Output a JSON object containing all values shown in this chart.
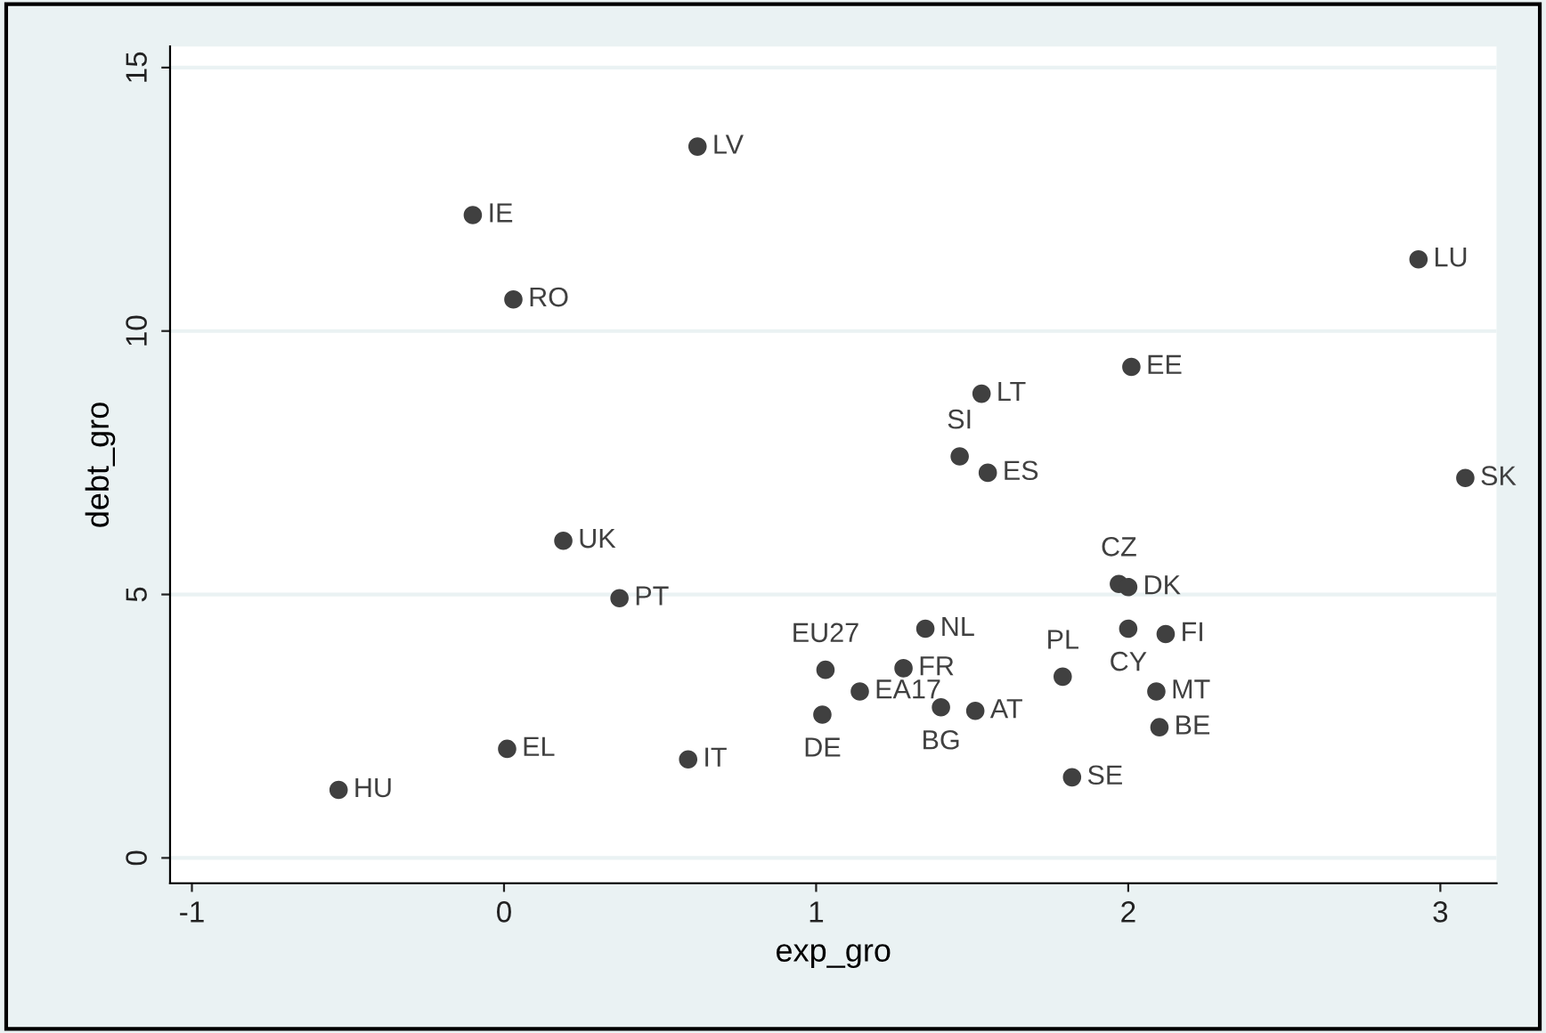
{
  "chart_data": {
    "type": "scatter",
    "xlabel": "exp_gro",
    "ylabel": "debt_gro",
    "x": [
      0.62,
      -0.1,
      0.03,
      2.93,
      1.53,
      2.01,
      1.46,
      1.55,
      3.08,
      0.19,
      0.37,
      1.97,
      2.0,
      1.35,
      2.0,
      2.12,
      1.03,
      1.28,
      1.14,
      1.02,
      1.4,
      1.51,
      1.79,
      2.09,
      2.1,
      1.82,
      0.59,
      0.01,
      -0.53
    ],
    "series": [
      {
        "color": "#404040",
        "values": [
          13.5,
          12.2,
          10.6,
          11.36,
          8.81,
          9.32,
          7.62,
          7.31,
          7.21,
          6.02,
          4.93,
          5.2,
          5.14,
          4.35,
          4.35,
          4.25,
          3.57,
          3.6,
          3.16,
          2.72,
          2.86,
          2.79,
          3.44,
          3.16,
          2.48,
          1.53,
          1.87,
          2.07,
          1.29
        ]
      }
    ],
    "annotations": [
      {
        "text": "LV",
        "x": 0.62,
        "y": 13.5
      },
      {
        "text": "IE",
        "x": -0.1,
        "y": 12.2
      },
      {
        "text": "RO",
        "x": 0.03,
        "y": 10.6
      },
      {
        "text": "LU",
        "x": 2.93,
        "y": 11.36
      },
      {
        "text": "LT",
        "x": 1.53,
        "y": 8.81
      },
      {
        "text": "EE",
        "x": 2.01,
        "y": 9.32
      },
      {
        "text": "SI",
        "x": 1.46,
        "y": 7.62
      },
      {
        "text": "ES",
        "x": 1.55,
        "y": 7.31
      },
      {
        "text": "SK",
        "x": 3.08,
        "y": 7.21
      },
      {
        "text": "UK",
        "x": 0.19,
        "y": 6.02
      },
      {
        "text": "PT",
        "x": 0.37,
        "y": 4.93
      },
      {
        "text": "CZ",
        "x": 1.97,
        "y": 5.2
      },
      {
        "text": "DK",
        "x": 2.0,
        "y": 5.14
      },
      {
        "text": "NL",
        "x": 1.35,
        "y": 4.35
      },
      {
        "text": "CY",
        "x": 2.0,
        "y": 4.35
      },
      {
        "text": "FI",
        "x": 2.12,
        "y": 4.25
      },
      {
        "text": "EU27",
        "x": 1.03,
        "y": 3.57
      },
      {
        "text": "FR",
        "x": 1.28,
        "y": 3.6
      },
      {
        "text": "EA17",
        "x": 1.14,
        "y": 3.16
      },
      {
        "text": "DE",
        "x": 1.02,
        "y": 2.72
      },
      {
        "text": "BG",
        "x": 1.4,
        "y": 2.86
      },
      {
        "text": "AT",
        "x": 1.51,
        "y": 2.79
      },
      {
        "text": "PL",
        "x": 1.79,
        "y": 3.44
      },
      {
        "text": "MT",
        "x": 2.09,
        "y": 3.16
      },
      {
        "text": "BE",
        "x": 2.1,
        "y": 2.48
      },
      {
        "text": "SE",
        "x": 1.82,
        "y": 1.53
      },
      {
        "text": "IT",
        "x": 0.59,
        "y": 1.87
      },
      {
        "text": "EL",
        "x": 0.01,
        "y": 2.07
      },
      {
        "text": "HU",
        "x": -0.53,
        "y": 1.29
      }
    ],
    "xlim": [
      -1.07,
      3.18
    ],
    "ylim": [
      -0.48,
      15.4
    ],
    "xticks": [
      -1,
      0,
      1,
      2,
      3
    ],
    "yticks": [
      0,
      5,
      10,
      15
    ],
    "grid": "y",
    "marker": "circle",
    "legend": false
  }
}
